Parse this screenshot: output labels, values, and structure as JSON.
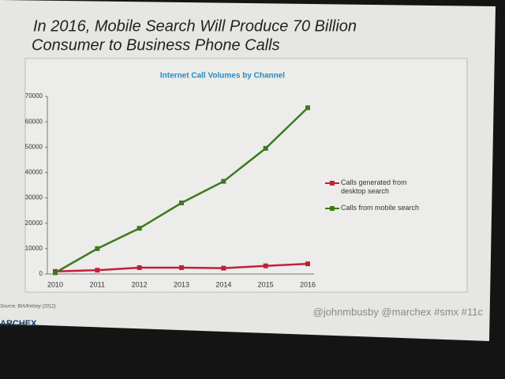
{
  "slide": {
    "title": [
      "In 2016, Mobile Search  Will Produce 70 Billion",
      "Consumer to Business Phone Calls"
    ],
    "source": "Source: BIA/Kelsey (2012)",
    "handle": "@johnmbusby @marchex #smx #11c",
    "logo": "ARCHEX"
  },
  "chart_data": {
    "type": "line",
    "title": "Internet Call Volumes by Channel",
    "categories": [
      "2010",
      "2011",
      "2012",
      "2013",
      "2014",
      "2015",
      "2016"
    ],
    "series": [
      {
        "name": "Calls generated from desktop search",
        "color": "#c0203a",
        "values": [
          1000,
          1500,
          2500,
          2500,
          2300,
          3200,
          4000
        ]
      },
      {
        "name": "Calls from mobile search",
        "color": "#3c7a1e",
        "values": [
          500,
          10000,
          18000,
          28000,
          36500,
          49500,
          65500
        ]
      }
    ],
    "ylim": [
      0,
      70000
    ],
    "yticks": [
      0,
      10000,
      20000,
      30000,
      40000,
      50000,
      60000,
      70000
    ],
    "legend": "right"
  }
}
